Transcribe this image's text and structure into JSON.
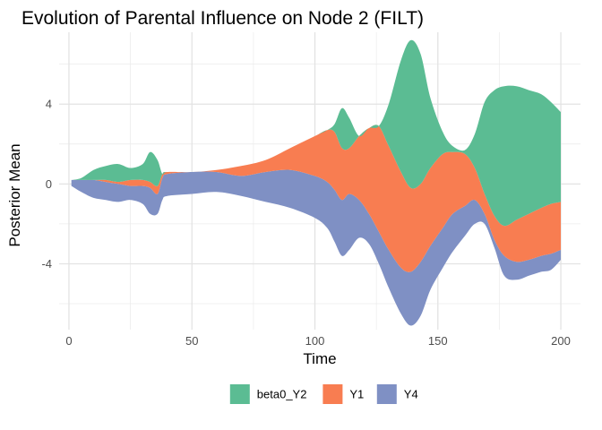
{
  "chart_data": {
    "type": "area",
    "title": "Evolution of Parental Influence on Node 2 (FILT)",
    "xlabel": "Time",
    "ylabel": "Posterior Mean",
    "xlim": [
      -4,
      208
    ],
    "ylim": [
      -7.3,
      7.6
    ],
    "x_ticks": [
      0,
      50,
      100,
      150,
      200
    ],
    "x_tick_labels": [
      "0",
      "50",
      "100",
      "150",
      "200"
    ],
    "y_ticks": [
      -4,
      0,
      4
    ],
    "y_tick_labels": [
      "-4",
      "0",
      "4"
    ],
    "grid": true,
    "legend_position": "bottom",
    "x": [
      1,
      5,
      10,
      15,
      20,
      25,
      30,
      33,
      36,
      38,
      40,
      50,
      60,
      70,
      80,
      90,
      100,
      105,
      108,
      111,
      114,
      118,
      122,
      126,
      130,
      135,
      139,
      143,
      147,
      152,
      156,
      161,
      165,
      169,
      173,
      177,
      182,
      187,
      192,
      196,
      200
    ],
    "series": [
      {
        "name": "beta0_Y2",
        "color": "#5bbc93",
        "lower": [
          0.2,
          0.2,
          0.2,
          0.2,
          0.1,
          0.2,
          0.2,
          0.1,
          -0.1,
          0.5,
          0.6,
          0.6,
          0.7,
          0.9,
          1.2,
          1.8,
          2.4,
          2.7,
          2.6,
          1.8,
          1.8,
          2.4,
          2.8,
          2.9,
          1.9,
          0.6,
          -0.2,
          0.0,
          0.8,
          1.5,
          1.6,
          1.5,
          0.8,
          -0.5,
          -1.6,
          -2.1,
          -1.8,
          -1.5,
          -1.2,
          -1.0,
          -0.9
        ],
        "upper": [
          0.2,
          0.3,
          0.7,
          0.9,
          1.0,
          0.8,
          1.0,
          1.6,
          1.2,
          0.5,
          0.6,
          0.6,
          0.7,
          0.9,
          1.2,
          1.8,
          2.4,
          2.7,
          3.0,
          3.8,
          3.3,
          2.4,
          2.8,
          2.9,
          4.0,
          6.2,
          7.2,
          6.5,
          4.3,
          2.6,
          1.9,
          1.7,
          2.5,
          4.1,
          4.7,
          4.9,
          4.9,
          4.7,
          4.5,
          4.1,
          3.6
        ]
      },
      {
        "name": "Y1",
        "color": "#f87d51",
        "lower": [
          0.2,
          0.2,
          0.2,
          0.1,
          0.0,
          -0.1,
          -0.1,
          -0.2,
          -0.5,
          0.3,
          0.5,
          0.6,
          0.6,
          0.4,
          0.6,
          0.7,
          0.4,
          0.1,
          -0.3,
          -0.8,
          -0.5,
          -0.8,
          -1.5,
          -2.4,
          -3.3,
          -4.2,
          -4.4,
          -3.9,
          -3.1,
          -2.2,
          -1.5,
          -1.1,
          -0.8,
          -1.5,
          -2.8,
          -3.6,
          -3.9,
          -3.8,
          -3.6,
          -3.5,
          -3.3
        ],
        "upper": [
          0.2,
          0.2,
          0.2,
          0.2,
          0.1,
          0.2,
          0.2,
          0.1,
          -0.1,
          0.5,
          0.6,
          0.6,
          0.7,
          0.9,
          1.2,
          1.8,
          2.4,
          2.7,
          2.6,
          1.8,
          1.8,
          2.4,
          2.8,
          2.9,
          1.9,
          0.6,
          -0.2,
          0.0,
          0.8,
          1.5,
          1.6,
          1.5,
          0.8,
          -0.5,
          -1.6,
          -2.1,
          -1.8,
          -1.5,
          -1.2,
          -1.0,
          -0.9
        ]
      },
      {
        "name": "Y4",
        "color": "#7f90c4",
        "lower": [
          -0.1,
          -0.4,
          -0.7,
          -0.8,
          -0.9,
          -0.8,
          -1.0,
          -1.5,
          -1.5,
          -0.8,
          -0.6,
          -0.5,
          -0.4,
          -0.6,
          -0.9,
          -1.2,
          -1.7,
          -2.2,
          -2.9,
          -3.6,
          -3.3,
          -2.7,
          -3.0,
          -4.0,
          -5.2,
          -6.5,
          -7.1,
          -6.6,
          -5.3,
          -4.2,
          -3.4,
          -2.6,
          -2.0,
          -2.0,
          -3.2,
          -4.6,
          -4.8,
          -4.6,
          -4.4,
          -4.3,
          -3.8
        ],
        "upper": [
          0.2,
          0.2,
          0.2,
          0.1,
          0.0,
          -0.1,
          -0.1,
          -0.2,
          -0.5,
          0.3,
          0.5,
          0.6,
          0.6,
          0.4,
          0.6,
          0.7,
          0.4,
          0.1,
          -0.3,
          -0.8,
          -0.5,
          -0.8,
          -1.5,
          -2.4,
          -3.3,
          -4.2,
          -4.4,
          -3.9,
          -3.1,
          -2.2,
          -1.5,
          -1.1,
          -0.8,
          -1.5,
          -2.8,
          -3.6,
          -3.9,
          -3.8,
          -3.6,
          -3.5,
          -3.3
        ]
      }
    ]
  }
}
